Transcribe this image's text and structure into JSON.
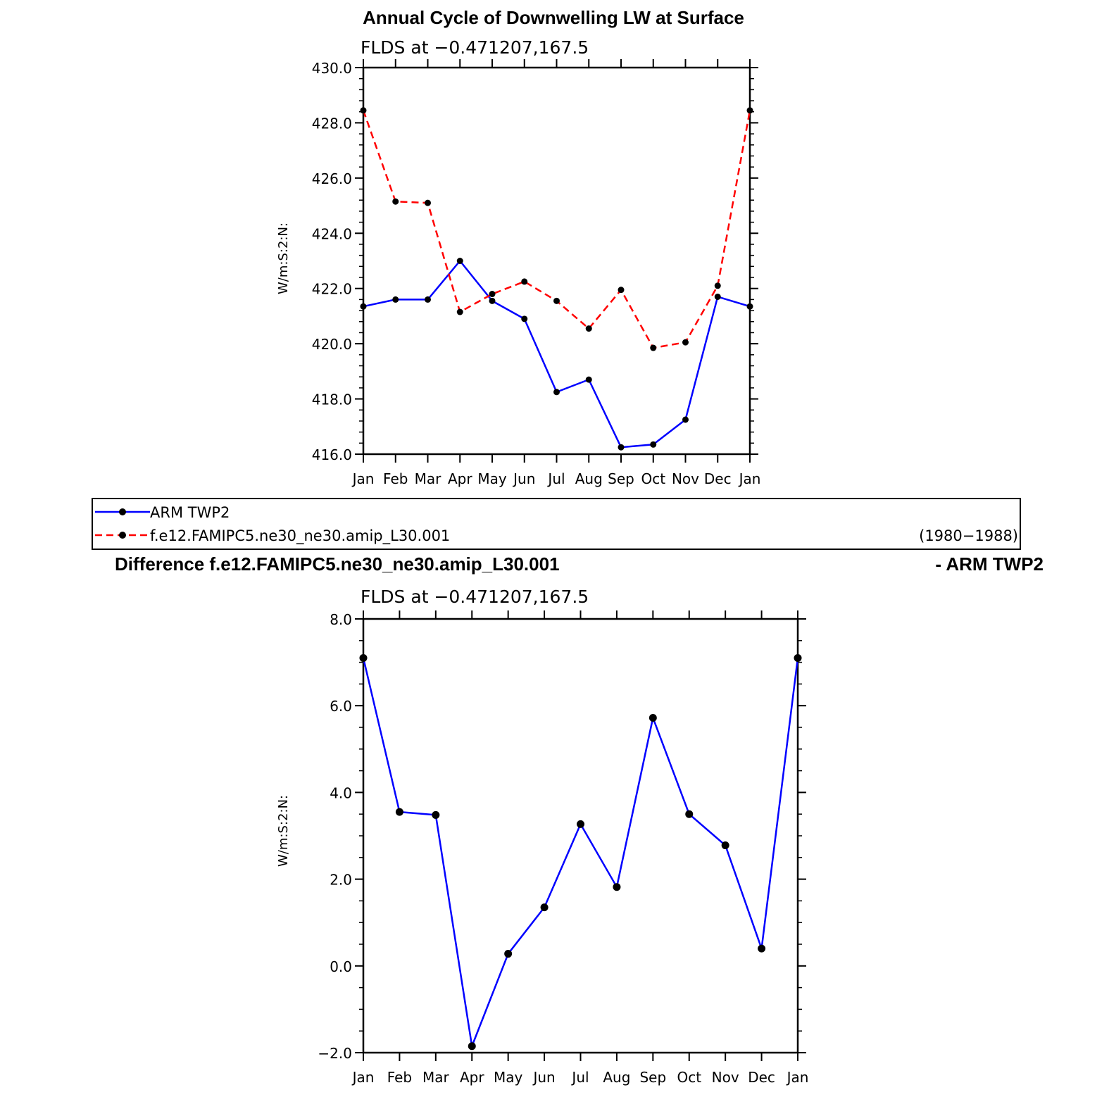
{
  "chart_data": [
    {
      "type": "line",
      "title": "Annual Cycle of Downwelling LW at Surface",
      "subtitle": "FLDS at −0.471207,167.5",
      "ylabel": "W/m:S:2:N:",
      "ylim": [
        416,
        430
      ],
      "yticks": [
        "416.0",
        "418.0",
        "420.0",
        "422.0",
        "424.0",
        "426.0",
        "428.0",
        "430.0"
      ],
      "categories": [
        "Jan",
        "Feb",
        "Mar",
        "Apr",
        "May",
        "Jun",
        "Jul",
        "Aug",
        "Sep",
        "Oct",
        "Nov",
        "Dec",
        "Jan"
      ],
      "series": [
        {
          "name": "ARM TWP2",
          "color": "#0000ff",
          "dash": "solid",
          "values": [
            421.35,
            421.6,
            421.6,
            423.0,
            421.55,
            420.9,
            418.25,
            418.7,
            416.25,
            416.35,
            417.25,
            421.7,
            421.35
          ]
        },
        {
          "name": "f.e12.FAMIPC5.ne30_ne30.amip_L30.001",
          "color": "#ff0000",
          "dash": "dashed",
          "values": [
            428.45,
            425.15,
            425.1,
            421.15,
            421.8,
            422.25,
            421.55,
            420.55,
            421.95,
            419.85,
            420.05,
            422.1,
            428.45
          ]
        }
      ],
      "legend": {
        "placement": "below",
        "period": "(1980−1988)"
      }
    },
    {
      "type": "line",
      "title_left": "Difference f.e12.FAMIPC5.ne30_ne30.amip_L30.001",
      "title_right": "- ARM TWP2",
      "subtitle": "FLDS at −0.471207,167.5",
      "ylabel": "W/m:S:2:N:",
      "ylim": [
        -2,
        8
      ],
      "yticks": [
        "−2.0",
        "0.0",
        "2.0",
        "4.0",
        "6.0",
        "8.0"
      ],
      "categories": [
        "Jan",
        "Feb",
        "Mar",
        "Apr",
        "May",
        "Jun",
        "Jul",
        "Aug",
        "Sep",
        "Oct",
        "Nov",
        "Dec",
        "Jan"
      ],
      "series": [
        {
          "color": "#0000ff",
          "dash": "solid",
          "values": [
            7.1,
            3.55,
            3.48,
            -1.85,
            0.28,
            1.35,
            3.27,
            1.82,
            5.72,
            3.5,
            2.78,
            0.4,
            7.1
          ]
        }
      ]
    }
  ]
}
